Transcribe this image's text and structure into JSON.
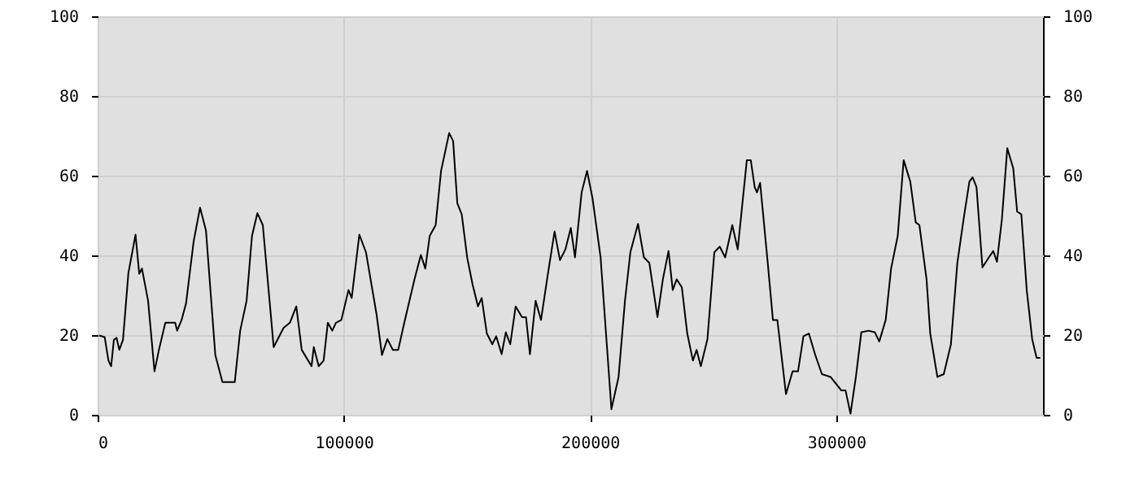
{
  "chart_data": {
    "type": "line",
    "x": [
      660,
      2860,
      4400,
      5500,
      6600,
      7700,
      8800,
      10300,
      12500,
      15400,
      16900,
      18000,
      20500,
      23100,
      24900,
      27500,
      31500,
      32300,
      34100,
      35900,
      39000,
      41600,
      44000,
      47800,
      50700,
      55700,
      57900,
      60500,
      62700,
      64900,
      67100,
      71500,
      75500,
      78100,
      80700,
      82900,
      86900,
      87800,
      89800,
      91800,
      93500,
      95300,
      96800,
      99000,
      101900,
      103200,
      106300,
      109000,
      113300,
      115500,
      117700,
      119900,
      122100,
      124300,
      128700,
      131300,
      133100,
      134900,
      137300,
      139500,
      142800,
      144400,
      146100,
      147900,
      150100,
      152300,
      154500,
      156000,
      158100,
      160300,
      161900,
      164100,
      165800,
      167600,
      169800,
      172400,
      174000,
      175600,
      177900,
      180100,
      182900,
      185600,
      187800,
      190000,
      192200,
      193900,
      196600,
      198800,
      201000,
      204300,
      206500,
      208700,
      211600,
      214200,
      216400,
      219500,
      221900,
      224100,
      227400,
      229600,
      231900,
      233600,
      235200,
      237300,
      239500,
      241800,
      243300,
      245000,
      247700,
      250500,
      252700,
      254900,
      257800,
      260000,
      263700,
      265300,
      266900,
      267800,
      269100,
      272200,
      274300,
      276100,
      279600,
      282300,
      284500,
      286700,
      288900,
      291500,
      294200,
      297700,
      300300,
      302100,
      303800,
      305800,
      308000,
      310200,
      313100,
      315700,
      317500,
      320100,
      322300,
      325000,
      327400,
      330100,
      332300,
      333800,
      336700,
      338200,
      341100,
      343700,
      346600,
      349200,
      351900,
      354100,
      355400,
      357000,
      359400,
      362000,
      363800,
      365300,
      367300,
      369500,
      371900,
      373500,
      375200,
      377400,
      379600,
      381400,
      382900
    ],
    "series": [
      {
        "color": "#000000",
        "values": [
          19.9,
          19.5,
          13.6,
          12.2,
          18.8,
          19.3,
          16.3,
          18.8,
          35.6,
          45.2,
          35.4,
          36.7,
          28.6,
          10.9,
          16.3,
          23.1,
          23.1,
          21.1,
          23.8,
          27.9,
          43.5,
          52,
          46.3,
          15,
          8.2,
          8.2,
          21.1,
          28.6,
          44.9,
          50.6,
          47.6,
          17,
          21.8,
          23.1,
          27.2,
          16.3,
          12.2,
          17,
          12.2,
          13.6,
          23.1,
          21.1,
          23.1,
          23.8,
          31.3,
          29.3,
          45.2,
          40.8,
          25.2,
          15,
          19,
          16.3,
          16.3,
          22.4,
          34,
          40.1,
          36.7,
          44.9,
          47.6,
          61.2,
          70.7,
          68.7,
          53.1,
          50.3,
          39.5,
          32.7,
          27.2,
          29.3,
          20.4,
          17.7,
          19.7,
          15.2,
          20.7,
          17.7,
          27.2,
          24.5,
          24.5,
          15.2,
          28.6,
          23.8,
          35.4,
          46,
          38.8,
          41.5,
          46.9,
          39.5,
          55.8,
          61.2,
          54.4,
          39.5,
          20.4,
          1.4,
          9.5,
          28.6,
          40.8,
          47.9,
          39.5,
          38.1,
          24.5,
          34,
          41.1,
          31.3,
          34,
          32,
          20.4,
          13.6,
          16.3,
          12.2,
          19,
          40.8,
          42.2,
          39.5,
          47.6,
          41.5,
          63.9,
          63.9,
          57.1,
          55.8,
          58.2,
          38.1,
          23.8,
          23.8,
          5.2,
          10.9,
          10.9,
          19.7,
          20.4,
          15,
          10.2,
          9.5,
          7.5,
          6.1,
          6.1,
          0.3,
          9.5,
          20.7,
          21.1,
          20.7,
          18.4,
          23.8,
          36.7,
          44.9,
          63.9,
          58.5,
          48.3,
          47.6,
          34,
          20.4,
          9.5,
          10.2,
          17.7,
          38.1,
          49.7,
          58.5,
          59.6,
          57.1,
          37,
          39.5,
          41.1,
          38.4,
          49,
          66.9,
          61.9,
          51,
          50.3,
          31.3,
          19,
          14.3,
          14.3
        ]
      }
    ],
    "xlim": [
      0,
      384000
    ],
    "xticks": [
      0,
      100000,
      200000,
      300000
    ],
    "ylim": [
      0,
      100
    ],
    "yticks": [
      0,
      20,
      40,
      60,
      80,
      100
    ],
    "y2lim": [
      0,
      100
    ],
    "y2ticks": [
      0,
      20,
      40,
      60,
      80,
      100
    ],
    "grid": true
  }
}
